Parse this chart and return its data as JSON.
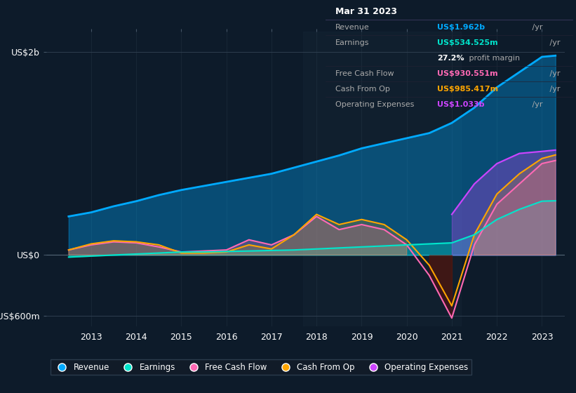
{
  "bg_color": "#0d1b2a",
  "plot_bg_color": "#0d1b2a",
  "title_box": {
    "date": "Mar 31 2023",
    "rows": [
      {
        "label": "Revenue",
        "value": "US$1.962b /yr",
        "value_color": "#00aaff"
      },
      {
        "label": "Earnings",
        "value": "US$534.525m /yr",
        "value_color": "#00e5cc"
      },
      {
        "label": "",
        "value": "27.2% profit margin",
        "value_color": "#ffffff",
        "bold_part": "27.2%"
      },
      {
        "label": "Free Cash Flow",
        "value": "US$930.551m /yr",
        "value_color": "#ff69b4"
      },
      {
        "label": "Cash From Op",
        "value": "US$985.417m /yr",
        "value_color": "#ffa500"
      },
      {
        "label": "Operating Expenses",
        "value": "US$1.033b /yr",
        "value_color": "#cc44ff"
      }
    ]
  },
  "yticks_labels": [
    "US$2b",
    "US$0",
    "-US$600m"
  ],
  "yticks_values": [
    2000,
    0,
    -600
  ],
  "xlim": [
    2012.0,
    2023.5
  ],
  "ylim": [
    -700,
    2200
  ],
  "years": [
    2012.5,
    2013,
    2013.5,
    2014,
    2014.5,
    2015,
    2015.5,
    2016,
    2016.5,
    2017,
    2017.5,
    2018,
    2018.5,
    2019,
    2019.5,
    2020,
    2020.5,
    2021,
    2021.5,
    2022,
    2022.5,
    2023,
    2023.3
  ],
  "revenue": [
    380,
    420,
    480,
    530,
    590,
    640,
    680,
    720,
    760,
    800,
    860,
    920,
    980,
    1050,
    1100,
    1150,
    1200,
    1300,
    1450,
    1650,
    1800,
    1950,
    1962
  ],
  "earnings": [
    -20,
    -10,
    0,
    10,
    20,
    30,
    30,
    35,
    40,
    45,
    50,
    60,
    70,
    80,
    90,
    100,
    110,
    120,
    200,
    350,
    450,
    530,
    534
  ],
  "free_cash_flow": [
    50,
    100,
    130,
    120,
    80,
    30,
    40,
    50,
    150,
    100,
    200,
    380,
    250,
    300,
    250,
    100,
    -200,
    -620,
    100,
    500,
    700,
    900,
    930
  ],
  "cash_from_op": [
    50,
    110,
    140,
    130,
    100,
    20,
    20,
    30,
    100,
    60,
    200,
    400,
    300,
    350,
    300,
    150,
    -100,
    -500,
    200,
    600,
    800,
    950,
    985
  ],
  "operating_expenses": [
    null,
    null,
    null,
    null,
    null,
    null,
    null,
    null,
    null,
    null,
    null,
    null,
    null,
    null,
    null,
    null,
    null,
    400,
    700,
    900,
    1000,
    1020,
    1033
  ],
  "colors": {
    "revenue": "#00aaff",
    "earnings": "#00e5cc",
    "free_cash_flow": "#ff69b4",
    "cash_from_op": "#ffa500",
    "operating_expenses": "#cc44ff"
  },
  "legend_items": [
    {
      "label": "Revenue",
      "color": "#00aaff"
    },
    {
      "label": "Earnings",
      "color": "#00e5cc"
    },
    {
      "label": "Free Cash Flow",
      "color": "#ff69b4"
    },
    {
      "label": "Cash From Op",
      "color": "#ffa500"
    },
    {
      "label": "Operating Expenses",
      "color": "#cc44ff"
    }
  ]
}
